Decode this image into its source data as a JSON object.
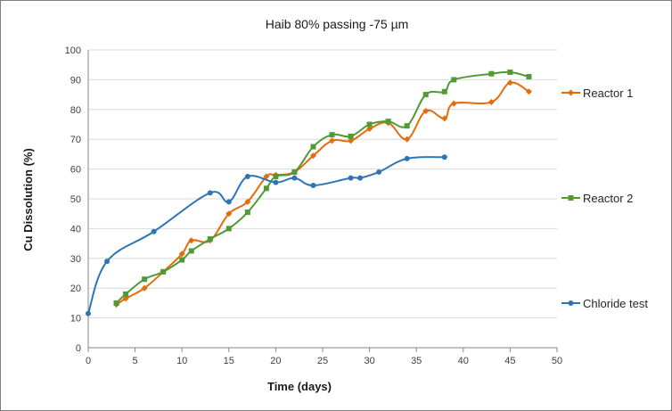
{
  "chart_data": {
    "type": "line",
    "title": "Haib  80% passing -75 µm",
    "xlabel": "Time (days)",
    "ylabel": "Cu Dissolution (%)",
    "xlim": [
      0,
      50
    ],
    "ylim": [
      0,
      100
    ],
    "xticks": [
      0,
      5,
      10,
      15,
      20,
      25,
      30,
      35,
      40,
      45,
      50
    ],
    "yticks": [
      0,
      10,
      20,
      30,
      40,
      50,
      60,
      70,
      80,
      90,
      100
    ],
    "grid": "horizontal",
    "legend": "right",
    "smooth": true,
    "series": [
      {
        "name": "Reactor 1",
        "color": "#e46c0a",
        "marker": "diamond",
        "x": [
          3,
          4,
          6,
          8,
          10,
          11,
          13,
          15,
          17,
          19,
          20,
          22,
          24,
          26,
          28,
          30,
          32,
          34,
          36,
          38,
          39,
          43,
          45,
          47
        ],
        "y": [
          14.5,
          16.5,
          20,
          25.5,
          31.5,
          36,
          36,
          45,
          49,
          57.5,
          58,
          59,
          64.5,
          69.5,
          69.5,
          73.5,
          75.5,
          70,
          79.5,
          77,
          82,
          82.5,
          89,
          86
        ]
      },
      {
        "name": "Reactor 2",
        "color": "#4f9a35",
        "marker": "square",
        "x": [
          3,
          4,
          6,
          8,
          10,
          11,
          13,
          15,
          17,
          19,
          20,
          22,
          24,
          26,
          28,
          30,
          32,
          34,
          36,
          38,
          39,
          43,
          45,
          47
        ],
        "y": [
          15,
          18,
          23,
          25.5,
          29.5,
          32.5,
          36.5,
          40,
          45.5,
          53.5,
          57.5,
          59,
          67.5,
          71.5,
          71,
          75,
          76,
          74.5,
          85,
          86,
          90,
          92,
          92.5,
          91
        ]
      },
      {
        "name": "Chloride test",
        "color": "#2e75b6",
        "marker": "circle",
        "x": [
          0,
          2,
          7,
          13,
          15,
          17,
          20,
          22,
          24,
          28,
          29,
          31,
          34,
          38
        ],
        "y": [
          11.5,
          29,
          39,
          52,
          49,
          57.5,
          55.5,
          57,
          54.5,
          57,
          57,
          59,
          63.5,
          64
        ]
      }
    ]
  }
}
